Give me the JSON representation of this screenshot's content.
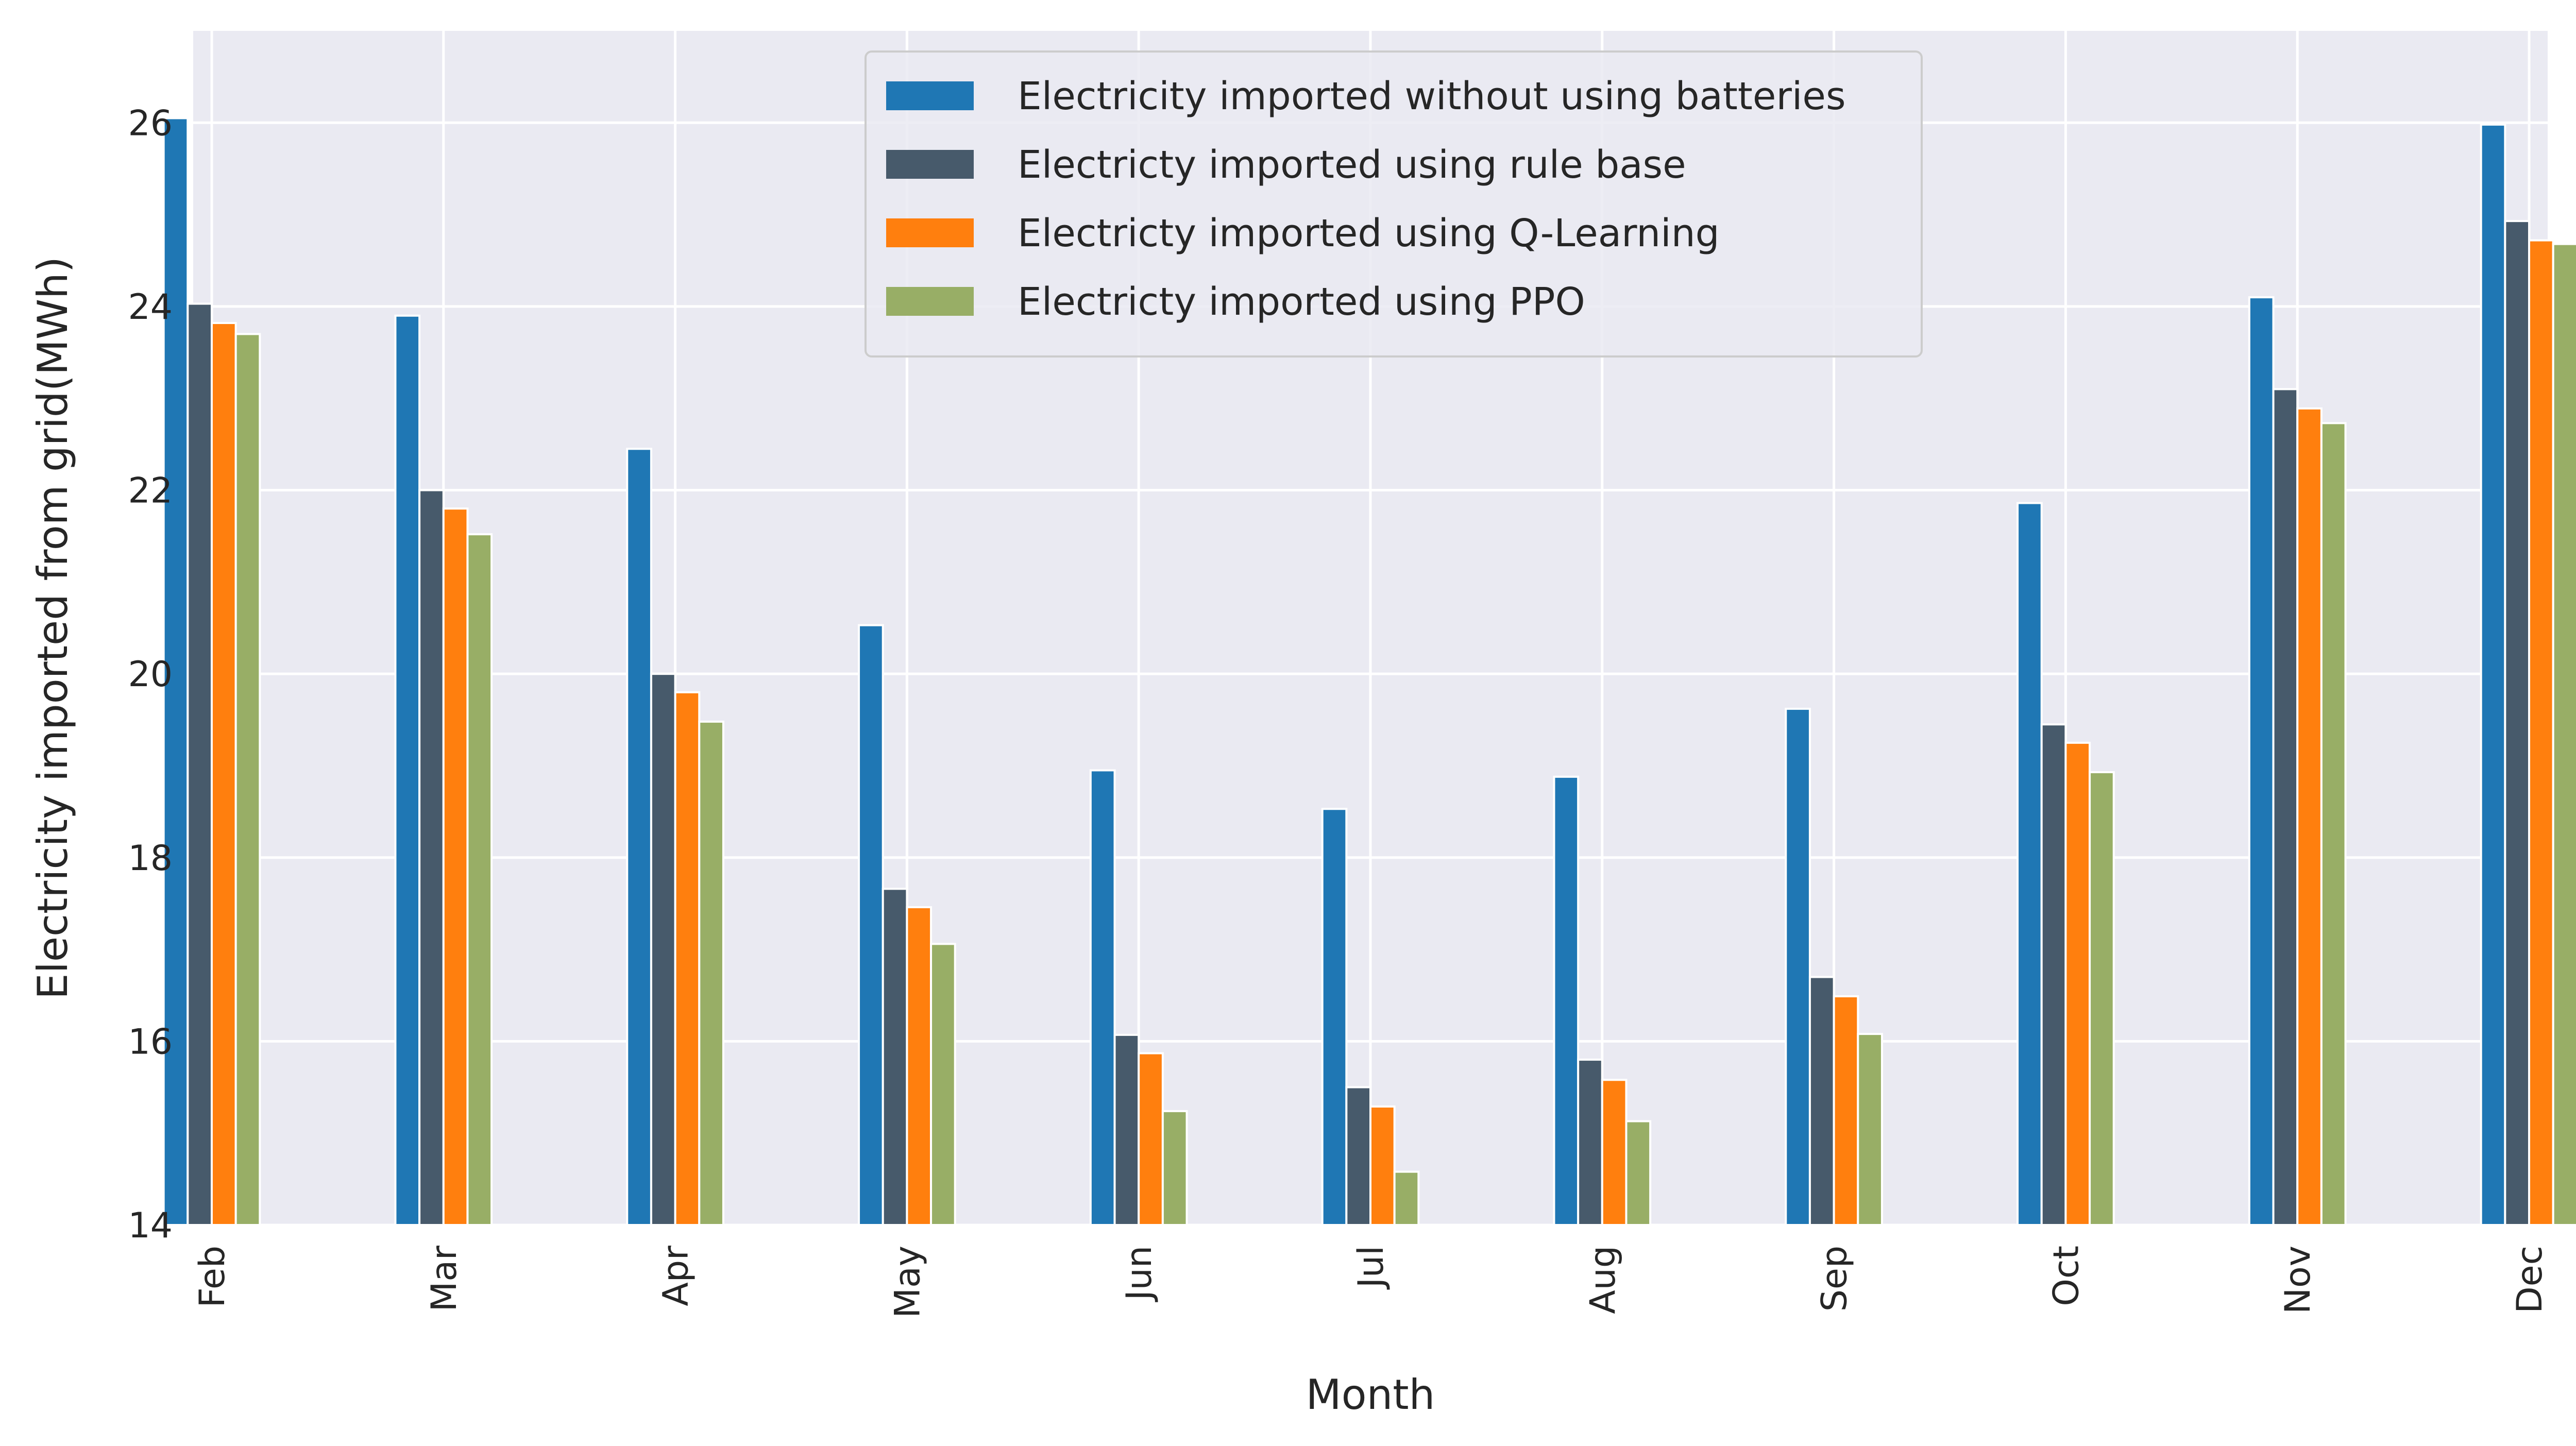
{
  "chart_data": {
    "type": "bar",
    "xlabel": "Month",
    "ylabel": "Electricity imported from grid(MWh)",
    "ylim": [
      14,
      27
    ],
    "yticks": [
      14,
      16,
      18,
      20,
      22,
      24,
      26
    ],
    "grid": true,
    "legend_position": "top-center",
    "categories": [
      "Feb",
      "Mar",
      "Apr",
      "May",
      "Jun",
      "Jul",
      "Aug",
      "Sep",
      "Oct",
      "Nov",
      "Dec"
    ],
    "series": [
      {
        "name": "Electricity imported without using batteries",
        "color": "#1f77b4",
        "values": [
          26.05,
          23.9,
          22.45,
          20.53,
          18.95,
          18.53,
          18.88,
          19.62,
          21.86,
          24.1,
          25.98
        ]
      },
      {
        "name": "Electricty imported using rule base",
        "color": "#475a6b",
        "values": [
          24.03,
          22.0,
          20.0,
          17.66,
          16.07,
          15.5,
          15.8,
          16.7,
          19.45,
          23.1,
          24.93
        ]
      },
      {
        "name": "Electricty imported using Q-Learning",
        "color": "#ff7f0e",
        "values": [
          23.82,
          21.8,
          19.8,
          17.46,
          15.87,
          15.29,
          15.58,
          16.49,
          19.25,
          22.89,
          24.72
        ]
      },
      {
        "name": "Electricty imported using PPO",
        "color": "#98ae66",
        "values": [
          23.7,
          21.52,
          19.48,
          17.06,
          15.24,
          14.58,
          15.13,
          16.08,
          18.93,
          22.73,
          24.68
        ]
      }
    ]
  },
  "style": {
    "plot_background": "#eaeaf2",
    "grid_color": "#ffffff"
  }
}
